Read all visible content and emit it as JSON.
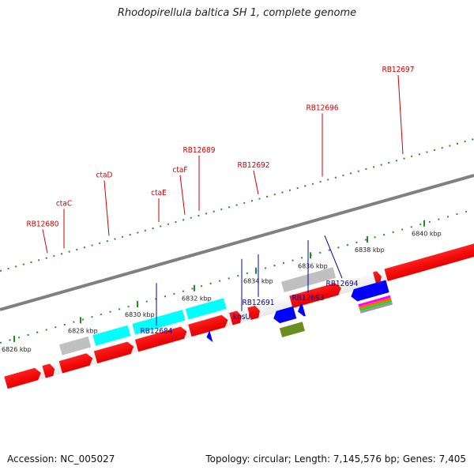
{
  "title": "Rhodopirellula baltica SH 1, complete genome",
  "footer": {
    "accession": "Accession: NC_005027",
    "topology": "Topology: circular; Length: 7,145,576 bp; Genes: 7,405"
  },
  "colors": {
    "forward_cds": "#ff0000",
    "cds_cyan": "#00ffff",
    "cds_grey": "#c0c0c0",
    "reverse_cds": "#0000ff",
    "reverse_olive": "#6b8e23",
    "backbone": "#808080",
    "tick": "#228b22",
    "label_forward": "#cc0000",
    "label_reverse": "#0000aa"
  },
  "scale_ticks": [
    {
      "label": "6826 kbp",
      "t": 0.03
    },
    {
      "label": "6828 kbp",
      "t": 0.17
    },
    {
      "label": "6830 kbp",
      "t": 0.29
    },
    {
      "label": "6832 kbp",
      "t": 0.41
    },
    {
      "label": "6834 kbp",
      "t": 0.54
    },
    {
      "label": "6836 kbp",
      "t": 0.655
    },
    {
      "label": "6838 kbp",
      "t": 0.775
    },
    {
      "label": "6840 kbp",
      "t": 0.895
    }
  ],
  "forward_labels": [
    {
      "text": "RB12680",
      "t": 0.1
    },
    {
      "text": "ctaC",
      "t": 0.135
    },
    {
      "text": "ctaD",
      "t": 0.23
    },
    {
      "text": "ctaE",
      "t": 0.335
    },
    {
      "text": "ctaF",
      "t": 0.39
    },
    {
      "text": "RB12689",
      "t": 0.42
    },
    {
      "text": "RB12692",
      "t": 0.545
    },
    {
      "text": "RB12696",
      "t": 0.68
    },
    {
      "text": "RB12697",
      "t": 0.85
    }
  ],
  "reverse_labels": [
    {
      "text": "RB12684",
      "t": 0.33
    },
    {
      "text": "kpsU",
      "t": 0.51
    },
    {
      "text": "RB12691",
      "t": 0.545
    },
    {
      "text": "RB12693",
      "t": 0.65
    },
    {
      "text": "RB12694",
      "t": 0.685
    }
  ]
}
